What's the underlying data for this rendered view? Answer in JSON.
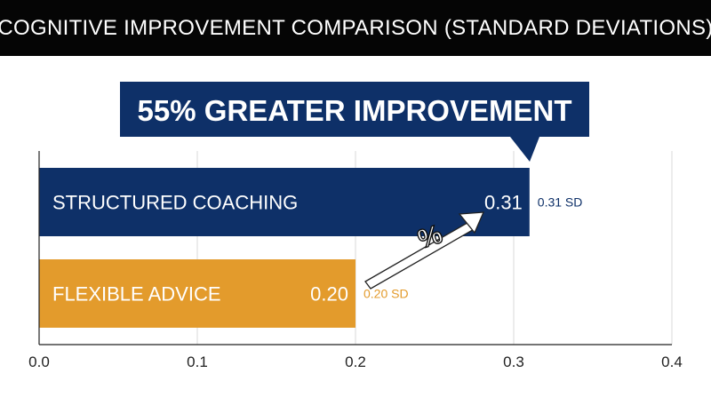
{
  "chart_data": {
    "type": "bar",
    "orientation": "horizontal",
    "title": "COGNITIVE IMPROVEMENT COMPARISON (STANDARD DEVIATIONS)",
    "callout": "55% GREATER IMPROVEMENT",
    "categories": [
      "STRUCTURED COACHING",
      "FLEXIBLE ADVICE"
    ],
    "values": [
      0.31,
      0.2
    ],
    "value_labels": [
      "0.31",
      "0.20"
    ],
    "outside_labels": [
      "0.31 SD",
      "0.20 SD"
    ],
    "colors": [
      "#0e3068",
      "#e39b2c"
    ],
    "xlim": [
      0,
      0.4
    ],
    "x_ticks": [
      0.0,
      0.1,
      0.2,
      0.3,
      0.4
    ],
    "x_tick_labels": [
      "0.0",
      "0.1",
      "0.2",
      "0.3",
      "0.4"
    ],
    "grid": "vertical",
    "arrow_symbol": "%",
    "arrow_icon": "arrow-up-right-icon"
  }
}
